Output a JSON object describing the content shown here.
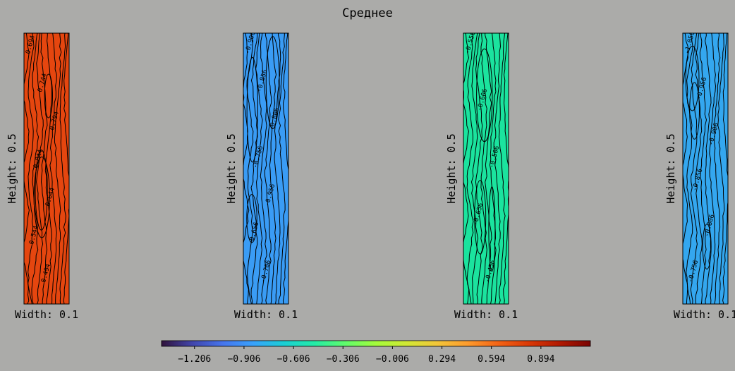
{
  "chart_data": {
    "type": "heatmap",
    "title": "Среднее",
    "panels": [
      {
        "xlabel": "Width: 0.1",
        "ylabel": "Height: 0.5",
        "base_value": 0.55,
        "base_color": "#e5460f",
        "contour_labels": [
          "0.694",
          "0.744",
          "0.794",
          "0.844",
          "0.644",
          "0.544",
          "0.494"
        ]
      },
      {
        "xlabel": "Width: 0.1",
        "ylabel": "Height: 0.5",
        "base_value": -0.906,
        "base_color": "#3a9cf5",
        "contour_labels": [
          "-0.906",
          "-0.856",
          "-0.806",
          "-0.756",
          "-0.956",
          "-0.656",
          "-0.706"
        ]
      },
      {
        "xlabel": "Width: 0.1",
        "ylabel": "Height: 0.5",
        "base_value": -0.506,
        "base_color": "#1be39e",
        "contour_labels": [
          "-0.556",
          "-0.606",
          "-0.506",
          "-0.656",
          "-0.456"
        ]
      },
      {
        "xlabel": "Width: 0.1",
        "ylabel": "Height: 0.5",
        "base_value": -0.806,
        "base_color": "#34a7ef",
        "contour_labels": [
          "-1.056",
          "-0.956",
          "-0.906",
          "-0.856",
          "-0.806",
          "-0.756"
        ]
      }
    ],
    "colorbar": {
      "min": -1.406,
      "max": 1.194,
      "ticks": [
        -1.206,
        -0.906,
        -0.606,
        -0.306,
        -0.006,
        0.294,
        0.594,
        0.894
      ],
      "tick_labels": [
        "−1.206",
        "−0.906",
        "−0.606",
        "−0.306",
        "−0.006",
        "0.294",
        "0.594",
        "0.894"
      ],
      "colormap": "turbo"
    },
    "colors": {
      "background": "#ababa9",
      "contour_line": "#000000"
    }
  }
}
